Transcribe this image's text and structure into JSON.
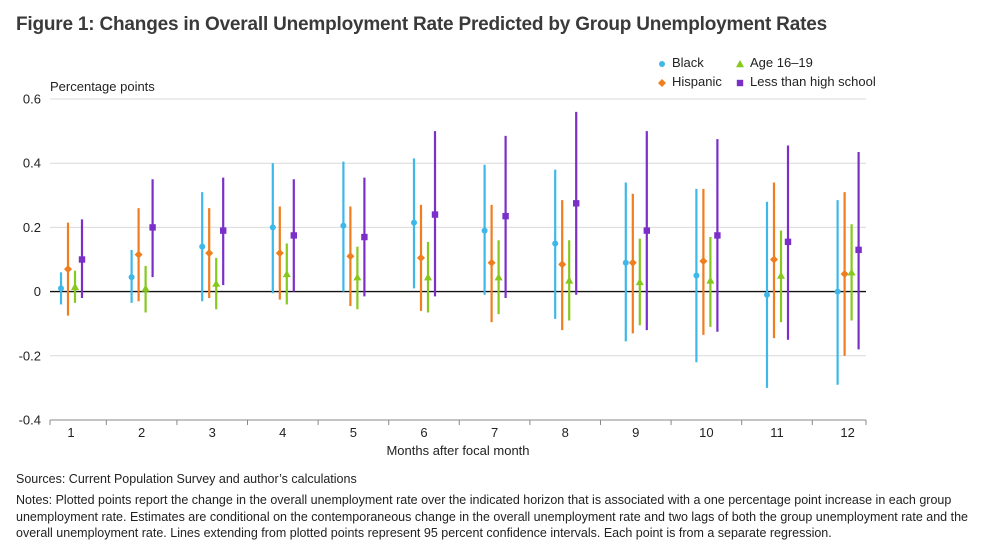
{
  "page": {
    "title": "Figure 1: Changes in Overall Unemployment Rate Predicted by Group Unemployment Rates",
    "sources": "Sources: Current Population Survey and author’s calculations",
    "notes": "Notes: Plotted points report the change in the overall unemployment rate over the indicated horizon that is associated with a one percentage point increase in each group unemployment rate. Estimates are conditional on the contemporaneous change in the overall unemployment rate and two lags of both the group unemployment rate and the overall unemployment rate. Lines extending from plotted points represent 95 percent confidence intervals. Each point is from a separate regression."
  },
  "chart_data": {
    "type": "scatter",
    "title": "Figure 1: Changes in Overall Unemployment Rate Predicted by Group Unemployment Rates",
    "ylabel": "Percentage points",
    "xlabel": "Months after focal month",
    "ylim": [
      -0.4,
      0.6
    ],
    "yticks": [
      "0.6",
      "0.4",
      "0.2",
      "0",
      "-0.2",
      "-0.4"
    ],
    "categories": [
      "1",
      "2",
      "3",
      "4",
      "5",
      "6",
      "7",
      "8",
      "9",
      "10",
      "11",
      "12"
    ],
    "grid": "horizontal",
    "legend_position": "top-right",
    "series": [
      {
        "name": "Black",
        "color": "#3db8e8",
        "marker": "circle",
        "values": [
          0.01,
          0.045,
          0.14,
          0.2,
          0.205,
          0.215,
          0.19,
          0.15,
          0.09,
          0.05,
          -0.01,
          0.0
        ],
        "lower": [
          -0.04,
          -0.035,
          -0.03,
          -0.005,
          0.0,
          0.01,
          -0.01,
          -0.085,
          -0.155,
          -0.22,
          -0.3,
          -0.29
        ],
        "upper": [
          0.06,
          0.13,
          0.31,
          0.4,
          0.405,
          0.415,
          0.395,
          0.38,
          0.34,
          0.32,
          0.28,
          0.285
        ]
      },
      {
        "name": "Hispanic",
        "color": "#f07d1e",
        "marker": "diamond",
        "values": [
          0.07,
          0.115,
          0.12,
          0.12,
          0.11,
          0.105,
          0.09,
          0.085,
          0.09,
          0.095,
          0.1,
          0.055
        ],
        "lower": [
          -0.075,
          -0.03,
          -0.02,
          -0.025,
          -0.045,
          -0.06,
          -0.095,
          -0.12,
          -0.13,
          -0.135,
          -0.145,
          -0.2
        ],
        "upper": [
          0.215,
          0.26,
          0.26,
          0.265,
          0.265,
          0.27,
          0.27,
          0.285,
          0.305,
          0.32,
          0.34,
          0.31
        ]
      },
      {
        "name": "Age 16–19",
        "color": "#86c81e",
        "marker": "triangle",
        "values": [
          0.015,
          0.01,
          0.025,
          0.055,
          0.045,
          0.045,
          0.045,
          0.035,
          0.03,
          0.035,
          0.05,
          0.06
        ],
        "lower": [
          -0.035,
          -0.065,
          -0.055,
          -0.04,
          -0.055,
          -0.065,
          -0.07,
          -0.09,
          -0.105,
          -0.11,
          -0.095,
          -0.09
        ],
        "upper": [
          0.065,
          0.08,
          0.105,
          0.15,
          0.14,
          0.155,
          0.16,
          0.16,
          0.165,
          0.17,
          0.19,
          0.21
        ]
      },
      {
        "name": "Less than high school",
        "color": "#7b2fc9",
        "marker": "square",
        "values": [
          0.1,
          0.2,
          0.19,
          0.175,
          0.17,
          0.24,
          0.235,
          0.275,
          0.19,
          0.175,
          0.155,
          0.13
        ],
        "lower": [
          -0.02,
          0.045,
          0.02,
          0.0,
          -0.015,
          -0.015,
          -0.02,
          -0.01,
          -0.12,
          -0.125,
          -0.15,
          -0.18
        ],
        "upper": [
          0.225,
          0.35,
          0.355,
          0.35,
          0.355,
          0.5,
          0.485,
          0.56,
          0.5,
          0.475,
          0.455,
          0.435
        ]
      }
    ]
  }
}
